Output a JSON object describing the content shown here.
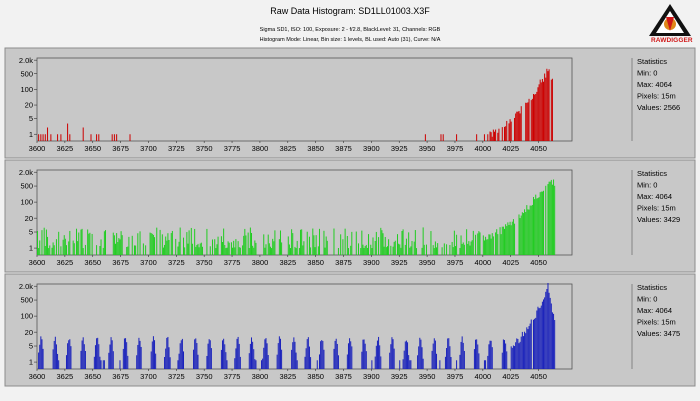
{
  "header": {
    "title": "Raw Data Histogram: SD1LL01003.X3F",
    "camera_line": "Sigma SD1, ISO: 100, Exposure: 2 - f/2.8, BlackLevel: 31, Channels: RGB",
    "mode_line": "Histogram Mode: Linear, Bin size: 1 levels, BL used: Auto (31), Curve: N/A"
  },
  "logo": {
    "text": "RAWDIGGER",
    "color": "#d01818",
    "name": "rawdigger-logo"
  },
  "chart_data": [
    {
      "type": "bar",
      "channel": "red",
      "color": "#cc0000",
      "xlim": [
        3600,
        4064
      ],
      "x_ticks": [
        3600,
        3625,
        3650,
        3675,
        3700,
        3725,
        3750,
        3775,
        3800,
        3825,
        3850,
        3875,
        3900,
        3925,
        3950,
        3975,
        4000,
        4025,
        4050
      ],
      "y_scale": "log",
      "y_ticks": [
        "2.0k",
        "500",
        "100",
        "20",
        "5",
        "1"
      ],
      "y_tick_values": [
        2000,
        500,
        100,
        20,
        5,
        1
      ],
      "ylim": [
        0.5,
        2500
      ],
      "grid": false,
      "stats": {
        "title": "Statistics",
        "min": "Min: 0",
        "max": "Max: 4064",
        "pixels": "Pixels: 15m",
        "values": "Values: 2566"
      },
      "sparse_spikes": [
        {
          "x": 3601,
          "y": 1
        },
        {
          "x": 3603,
          "y": 1
        },
        {
          "x": 3605,
          "y": 1
        },
        {
          "x": 3607,
          "y": 1
        },
        {
          "x": 3609,
          "y": 2
        },
        {
          "x": 3612,
          "y": 1
        },
        {
          "x": 3618,
          "y": 1
        },
        {
          "x": 3621,
          "y": 1
        },
        {
          "x": 3627,
          "y": 3
        },
        {
          "x": 3629,
          "y": 1
        },
        {
          "x": 3641,
          "y": 2
        },
        {
          "x": 3648,
          "y": 1
        },
        {
          "x": 3653,
          "y": 1
        },
        {
          "x": 3655,
          "y": 1
        },
        {
          "x": 3667,
          "y": 1
        },
        {
          "x": 3669,
          "y": 1
        },
        {
          "x": 3671,
          "y": 1
        },
        {
          "x": 3683,
          "y": 1
        },
        {
          "x": 3948,
          "y": 1
        },
        {
          "x": 3962,
          "y": 1
        },
        {
          "x": 3964,
          "y": 1
        },
        {
          "x": 3976,
          "y": 1
        },
        {
          "x": 3994,
          "y": 1
        },
        {
          "x": 4001,
          "y": 1
        },
        {
          "x": 4004,
          "y": 1
        }
      ],
      "tail": {
        "start": 4005,
        "end": 4064,
        "y_start": 1,
        "y_peak": 850,
        "peak_x": 4059,
        "y_end": 110,
        "fill": 0.72
      }
    },
    {
      "type": "bar",
      "channel": "green",
      "color": "#22cc22",
      "xlim": [
        3600,
        4064
      ],
      "x_ticks": [
        3600,
        3625,
        3650,
        3675,
        3700,
        3725,
        3750,
        3775,
        3800,
        3825,
        3850,
        3875,
        3900,
        3925,
        3950,
        3975,
        4000,
        4025,
        4050
      ],
      "y_scale": "log",
      "y_ticks": [
        "2.0k",
        "500",
        "100",
        "20",
        "5",
        "1"
      ],
      "y_tick_values": [
        2000,
        500,
        100,
        20,
        5,
        1
      ],
      "ylim": [
        0.5,
        2500
      ],
      "grid": false,
      "stats": {
        "title": "Statistics",
        "min": "Min: 0",
        "max": "Max: 4064",
        "pixels": "Pixels: 15m",
        "values": "Values: 3429"
      },
      "noise": {
        "start": 3600,
        "end": 4000,
        "fill": 0.62,
        "y_min": 1,
        "y_max": 8
      },
      "tail": {
        "start": 4000,
        "end": 4064,
        "y_start": 3,
        "y_peak": 1100,
        "peak_x": 4061,
        "y_end": 500,
        "fill": 0.9
      }
    },
    {
      "type": "bar",
      "channel": "blue",
      "color": "#1a22bb",
      "xlim": [
        3600,
        4064
      ],
      "x_ticks": [
        3600,
        3625,
        3650,
        3675,
        3700,
        3725,
        3750,
        3775,
        3800,
        3825,
        3850,
        3875,
        3900,
        3925,
        3950,
        3975,
        4000,
        4025,
        4050
      ],
      "y_scale": "log",
      "y_ticks": [
        "2.0k",
        "500",
        "100",
        "20",
        "5",
        "1"
      ],
      "y_tick_values": [
        2000,
        500,
        100,
        20,
        5,
        1
      ],
      "ylim": [
        0.5,
        2500
      ],
      "grid": false,
      "stats": {
        "title": "Statistics",
        "min": "Min: 0",
        "max": "Max: 4064",
        "pixels": "Pixels: 15m",
        "values": "Values: 3475"
      },
      "comb": {
        "start": 3600,
        "end": 4025,
        "period": 12.6,
        "y_min": 1,
        "y_max": 14
      },
      "tail": {
        "start": 4025,
        "end": 4064,
        "y_start": 6,
        "y_peak": 2000,
        "peak_x": 4058,
        "y_end": 60,
        "fill": 0.95
      }
    }
  ]
}
